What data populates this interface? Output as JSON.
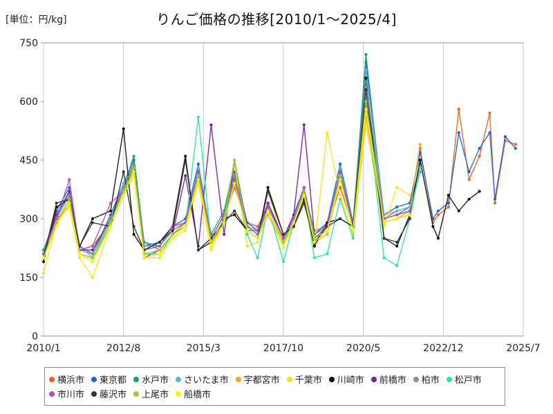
{
  "unit_label": "[単位：円/kg]",
  "title": "りんご価格の推移[2010/1～2025/4]",
  "chart_data": {
    "type": "line",
    "title": "りんご価格の推移[2010/1～2025/4]",
    "ylabel": "[単位：円/kg]",
    "ylim": [
      0,
      750
    ],
    "yticks": [
      0,
      150,
      300,
      450,
      600,
      750
    ],
    "ytick_labels": [
      "0",
      "150",
      "300",
      "450",
      "600",
      "750"
    ],
    "xlim": [
      "2010-01",
      "2025-07"
    ],
    "xticks": [
      "2010-01",
      "2012-08",
      "2015-03",
      "2017-10",
      "2020-05",
      "2022-12",
      "2025-07"
    ],
    "xtick_labels": [
      "2010/1",
      "2012/8",
      "2015/3",
      "2017/10",
      "2020/5",
      "2022/12",
      "2025/7"
    ],
    "grid": "vertical lines only",
    "legend_position": "bottom",
    "series": [
      {
        "name": "横浜市",
        "color": "#e8601c",
        "x": [
          "2010-01",
          "2010-06",
          "2010-11",
          "2011-03",
          "2011-08",
          "2012-03",
          "2012-08",
          "2012-12",
          "2013-04",
          "2013-10",
          "2014-03",
          "2014-08",
          "2015-01",
          "2015-06",
          "2015-11",
          "2016-03",
          "2016-08",
          "2016-12",
          "2017-04",
          "2017-10",
          "2018-02",
          "2018-06",
          "2018-10",
          "2019-03",
          "2019-08",
          "2020-01",
          "2020-06",
          "2021-01",
          "2021-06",
          "2021-11",
          "2022-03",
          "2022-08",
          "2022-10",
          "2023-02",
          "2023-06",
          "2023-10",
          "2024-02",
          "2024-06",
          "2024-08",
          "2024-12",
          "2025-04"
        ],
        "y": [
          210,
          300,
          330,
          220,
          230,
          290,
          380,
          430,
          240,
          220,
          260,
          290,
          400,
          230,
          300,
          380,
          290,
          280,
          330,
          250,
          300,
          370,
          270,
          280,
          380,
          280,
          600,
          300,
          320,
          330,
          480,
          290,
          310,
          330,
          580,
          400,
          460,
          570,
          340,
          500,
          490
        ]
      },
      {
        "name": "東京都",
        "color": "#1f63d6",
        "x": [
          "2010-01",
          "2010-06",
          "2010-11",
          "2011-03",
          "2011-08",
          "2012-03",
          "2012-08",
          "2012-12",
          "2013-04",
          "2013-10",
          "2014-03",
          "2014-08",
          "2015-01",
          "2015-06",
          "2015-11",
          "2016-03",
          "2016-08",
          "2016-12",
          "2017-04",
          "2017-10",
          "2018-02",
          "2018-06",
          "2018-10",
          "2019-03",
          "2019-08",
          "2020-01",
          "2020-06",
          "2021-01",
          "2021-06",
          "2021-11",
          "2022-03",
          "2022-08",
          "2022-10",
          "2023-02",
          "2023-06",
          "2023-10",
          "2024-02",
          "2024-06",
          "2024-08",
          "2024-12",
          "2025-04"
        ],
        "y": [
          200,
          320,
          380,
          230,
          210,
          310,
          390,
          450,
          230,
          240,
          280,
          300,
          440,
          250,
          310,
          420,
          290,
          270,
          340,
          250,
          310,
          380,
          260,
          290,
          440,
          290,
          700,
          310,
          330,
          340,
          470,
          300,
          320,
          340,
          520,
          420,
          480,
          520,
          350,
          510,
          480
        ]
      },
      {
        "name": "水戸市",
        "color": "#1a9e77",
        "x": [
          "2010-01",
          "2010-06",
          "2010-11",
          "2011-03",
          "2011-08",
          "2012-03",
          "2012-08",
          "2012-12",
          "2013-04",
          "2013-10",
          "2014-03",
          "2014-08",
          "2015-01",
          "2015-06",
          "2015-11",
          "2016-03",
          "2016-08",
          "2016-12",
          "2017-04",
          "2017-10",
          "2018-02",
          "2018-06",
          "2018-10",
          "2019-03",
          "2019-08",
          "2020-01",
          "2020-06",
          "2021-01",
          "2021-06",
          "2021-11",
          "2022-03"
        ],
        "y": [
          220,
          310,
          360,
          220,
          220,
          300,
          380,
          460,
          240,
          230,
          270,
          290,
          420,
          260,
          320,
          440,
          280,
          260,
          320,
          240,
          300,
          380,
          250,
          270,
          410,
          280,
          720,
          300,
          310,
          330,
          440
        ]
      },
      {
        "name": "さいたま市",
        "color": "#5ab4e5",
        "x": [
          "2010-01",
          "2010-06",
          "2010-11",
          "2011-03",
          "2011-08",
          "2012-03",
          "2012-08",
          "2012-12",
          "2013-04",
          "2013-10",
          "2014-03",
          "2014-08",
          "2015-01",
          "2015-06",
          "2015-11",
          "2016-03",
          "2016-08",
          "2016-12",
          "2017-04",
          "2017-10",
          "2018-02",
          "2018-06",
          "2018-10",
          "2019-03",
          "2019-08",
          "2020-01",
          "2020-06",
          "2021-01",
          "2021-06",
          "2021-11",
          "2022-03"
        ],
        "y": [
          210,
          300,
          370,
          230,
          200,
          300,
          390,
          440,
          230,
          230,
          270,
          290,
          430,
          250,
          310,
          400,
          280,
          270,
          330,
          250,
          300,
          370,
          260,
          280,
          430,
          280,
          680,
          310,
          320,
          330,
          430
        ]
      },
      {
        "name": "宇都宮市",
        "color": "#f5a623",
        "x": [
          "2010-01",
          "2010-06",
          "2010-11",
          "2011-03",
          "2011-08",
          "2012-03",
          "2012-08",
          "2012-12",
          "2013-04",
          "2013-10",
          "2014-03",
          "2014-08",
          "2015-01",
          "2015-06",
          "2015-11",
          "2016-03",
          "2016-08",
          "2016-12",
          "2017-04",
          "2017-10",
          "2018-02",
          "2018-06",
          "2018-10",
          "2019-03",
          "2019-08",
          "2020-01",
          "2020-06",
          "2021-01",
          "2021-06",
          "2021-11",
          "2022-03"
        ],
        "y": [
          200,
          290,
          340,
          210,
          190,
          290,
          370,
          420,
          210,
          210,
          260,
          280,
          400,
          240,
          300,
          390,
          270,
          250,
          310,
          230,
          290,
          360,
          240,
          260,
          400,
          270,
          560,
          290,
          300,
          320,
          490
        ]
      },
      {
        "name": "千葉市",
        "color": "#f7e21b",
        "x": [
          "2010-01",
          "2010-06",
          "2010-11",
          "2011-03",
          "2011-08",
          "2012-03",
          "2012-08",
          "2012-12",
          "2013-04",
          "2013-10",
          "2014-03",
          "2014-08",
          "2015-01",
          "2015-06",
          "2015-11",
          "2016-03",
          "2016-08",
          "2016-12",
          "2017-04",
          "2017-10",
          "2018-02",
          "2018-06",
          "2018-10",
          "2019-03",
          "2019-08",
          "2020-01",
          "2020-06",
          "2021-01",
          "2021-06",
          "2021-11"
        ],
        "y": [
          160,
          290,
          330,
          200,
          150,
          280,
          360,
          410,
          200,
          200,
          250,
          270,
          390,
          220,
          290,
          440,
          230,
          240,
          380,
          230,
          280,
          350,
          230,
          520,
          360,
          260,
          540,
          280,
          380,
          360
        ]
      },
      {
        "name": "川崎市",
        "color": "#111111",
        "x": [
          "2010-01",
          "2010-06",
          "2010-11",
          "2011-03",
          "2011-08",
          "2012-03",
          "2012-08",
          "2012-12",
          "2013-04",
          "2013-10",
          "2014-03",
          "2014-08",
          "2015-01",
          "2015-06",
          "2015-11",
          "2016-03",
          "2016-08",
          "2016-12",
          "2017-04",
          "2017-10",
          "2018-02",
          "2018-06",
          "2018-10",
          "2019-03",
          "2019-08",
          "2020-01",
          "2020-06",
          "2021-01",
          "2021-06",
          "2021-11",
          "2022-03",
          "2022-08",
          "2022-10",
          "2023-02",
          "2023-06",
          "2023-10",
          "2024-02"
        ],
        "y": [
          190,
          330,
          350,
          230,
          300,
          320,
          530,
          260,
          220,
          240,
          280,
          460,
          220,
          240,
          300,
          310,
          270,
          250,
          380,
          260,
          280,
          350,
          230,
          290,
          300,
          280,
          660,
          250,
          230,
          310,
          450,
          280,
          250,
          360,
          320,
          350,
          370
        ]
      },
      {
        "name": "前橋市",
        "color": "#7b1fa2",
        "x": [
          "2010-01",
          "2010-06",
          "2010-11",
          "2011-03",
          "2011-08",
          "2012-03",
          "2012-08",
          "2012-12",
          "2013-04",
          "2013-10",
          "2014-03",
          "2014-08",
          "2015-01",
          "2015-06",
          "2015-11",
          "2016-03",
          "2016-08",
          "2016-12",
          "2017-04",
          "2017-10",
          "2018-02",
          "2018-06",
          "2018-10",
          "2019-03",
          "2019-08",
          "2020-01",
          "2020-06",
          "2021-01",
          "2021-06",
          "2021-11"
        ],
        "y": [
          210,
          310,
          370,
          220,
          220,
          300,
          380,
          440,
          200,
          220,
          260,
          410,
          230,
          540,
          260,
          450,
          280,
          260,
          340,
          250,
          310,
          540,
          260,
          280,
          420,
          280,
          590,
          290,
          300,
          310
        ]
      },
      {
        "name": "柏市",
        "color": "#78909c",
        "x": [
          "2010-01",
          "2010-06",
          "2010-11",
          "2011-03",
          "2011-08",
          "2012-03",
          "2012-08",
          "2012-12",
          "2013-04",
          "2013-10",
          "2014-03",
          "2014-08",
          "2015-01",
          "2015-06",
          "2015-11",
          "2016-03",
          "2016-08",
          "2016-12",
          "2017-04",
          "2017-10",
          "2018-02",
          "2018-06",
          "2018-10",
          "2019-03",
          "2019-08",
          "2020-01",
          "2020-06",
          "2021-01",
          "2021-06",
          "2021-11",
          "2022-03"
        ],
        "y": [
          210,
          300,
          360,
          220,
          210,
          300,
          380,
          440,
          220,
          230,
          270,
          290,
          420,
          250,
          310,
          410,
          280,
          260,
          330,
          250,
          300,
          380,
          260,
          280,
          420,
          280,
          650,
          300,
          310,
          320,
          420
        ]
      },
      {
        "name": "松戸市",
        "color": "#2ee598",
        "x": [
          "2010-01",
          "2010-06",
          "2010-11",
          "2011-03",
          "2011-08",
          "2012-03",
          "2012-08",
          "2012-12",
          "2013-04",
          "2013-10",
          "2014-03",
          "2014-08",
          "2015-01",
          "2015-06",
          "2015-11",
          "2016-03",
          "2016-08",
          "2016-12",
          "2017-04",
          "2017-10",
          "2018-02",
          "2018-06",
          "2018-10",
          "2019-03",
          "2019-08",
          "2020-01",
          "2020-06",
          "2021-01",
          "2021-06",
          "2021-11",
          "2022-03"
        ],
        "y": [
          200,
          290,
          350,
          210,
          200,
          280,
          360,
          430,
          210,
          210,
          260,
          280,
          560,
          240,
          300,
          400,
          260,
          200,
          330,
          190,
          290,
          370,
          200,
          210,
          350,
          250,
          610,
          200,
          180,
          300,
          430
        ]
      },
      {
        "name": "市川市",
        "color": "#b44dbf",
        "x": [
          "2010-01",
          "2010-06",
          "2010-11",
          "2011-03",
          "2011-08",
          "2012-03",
          "2012-08",
          "2012-12",
          "2013-04",
          "2013-10",
          "2014-03",
          "2014-08",
          "2015-01",
          "2015-06",
          "2015-11",
          "2016-03",
          "2016-08",
          "2016-12",
          "2017-04",
          "2017-10",
          "2018-02",
          "2018-06",
          "2018-10",
          "2019-03",
          "2019-08",
          "2020-01",
          "2020-06",
          "2021-01",
          "2021-06",
          "2021-11"
        ],
        "y": [
          210,
          300,
          400,
          220,
          230,
          340,
          370,
          430,
          220,
          230,
          280,
          290,
          420,
          250,
          310,
          400,
          270,
          270,
          330,
          250,
          300,
          380,
          250,
          280,
          420,
          280,
          600,
          300,
          310,
          320
        ]
      },
      {
        "name": "藤沢市",
        "color": "#333333",
        "x": [
          "2010-01",
          "2010-06",
          "2010-11",
          "2011-03",
          "2011-08",
          "2012-03",
          "2012-08",
          "2012-12",
          "2013-04",
          "2013-10",
          "2014-03",
          "2014-08",
          "2015-01",
          "2015-06",
          "2015-11",
          "2016-03",
          "2016-08",
          "2016-12",
          "2017-04",
          "2017-10",
          "2018-02",
          "2018-06",
          "2018-10",
          "2019-03",
          "2019-08",
          "2020-01",
          "2020-06",
          "2021-01",
          "2021-06",
          "2021-11"
        ],
        "y": [
          200,
          340,
          350,
          230,
          290,
          280,
          420,
          280,
          220,
          240,
          270,
          450,
          220,
          250,
          290,
          320,
          270,
          250,
          370,
          260,
          280,
          340,
          240,
          280,
          300,
          280,
          630,
          250,
          240,
          300
        ]
      },
      {
        "name": "上尾市",
        "color": "#9acd32",
        "x": [
          "2010-01",
          "2010-06",
          "2010-11",
          "2011-03",
          "2011-08",
          "2012-03",
          "2012-08",
          "2012-12",
          "2013-04",
          "2013-10",
          "2014-03",
          "2014-08",
          "2015-01",
          "2015-06",
          "2015-11",
          "2016-03",
          "2016-08",
          "2016-12",
          "2017-04",
          "2017-10",
          "2018-02",
          "2018-06",
          "2018-10",
          "2019-03",
          "2019-08",
          "2020-01",
          "2020-06",
          "2021-01",
          "2021-06",
          "2021-11"
        ],
        "y": [
          200,
          290,
          350,
          210,
          200,
          290,
          370,
          430,
          210,
          220,
          260,
          280,
          410,
          240,
          300,
          450,
          270,
          250,
          320,
          240,
          290,
          370,
          250,
          270,
          410,
          270,
          600,
          290,
          300,
          310
        ]
      },
      {
        "name": "船橋市",
        "color": "#fff200",
        "x": [
          "2010-01",
          "2010-06",
          "2010-11",
          "2011-03",
          "2011-08",
          "2012-03",
          "2012-08",
          "2012-12",
          "2013-04",
          "2013-10",
          "2014-03",
          "2014-08",
          "2015-01",
          "2015-06",
          "2015-11",
          "2016-03",
          "2016-08",
          "2016-12",
          "2017-04",
          "2017-10",
          "2018-02",
          "2018-06",
          "2018-10",
          "2019-03",
          "2019-08",
          "2020-01",
          "2020-06",
          "2021-01",
          "2021-06",
          "2021-11"
        ],
        "y": [
          200,
          280,
          340,
          210,
          190,
          280,
          360,
          420,
          200,
          210,
          250,
          280,
          400,
          230,
          290,
          390,
          270,
          250,
          320,
          230,
          290,
          360,
          240,
          270,
          400,
          270,
          580,
          290,
          300,
          310
        ]
      }
    ]
  }
}
